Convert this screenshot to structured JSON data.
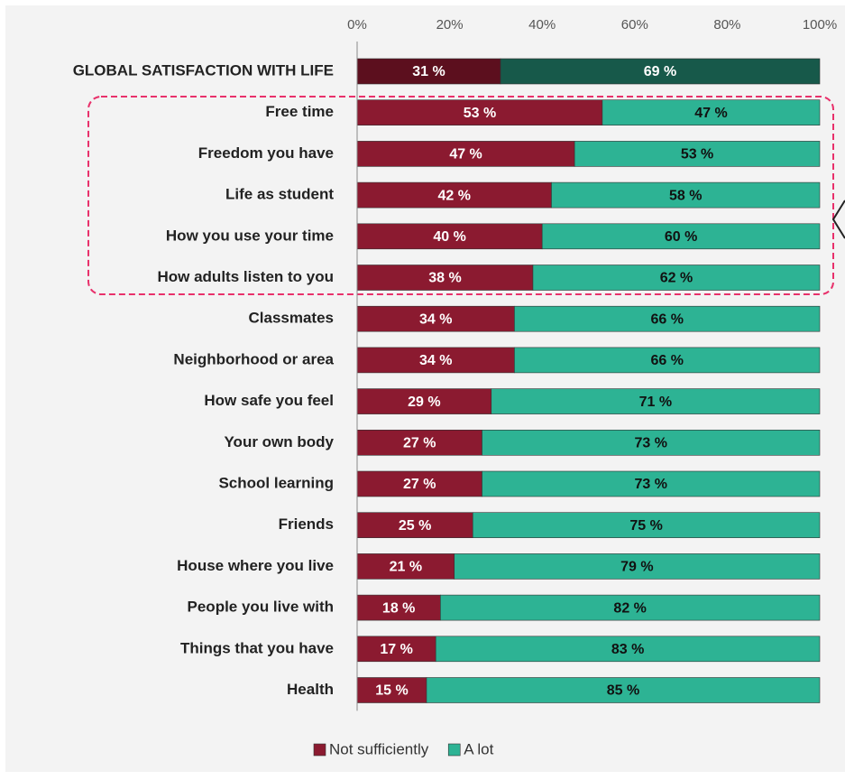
{
  "chart_data": {
    "type": "stacked_bar_horizontal",
    "categories": [
      "GLOBAL SATISFACTION WITH LIFE",
      "Free time",
      "Freedom you have",
      "Life as student",
      "How you use your time",
      "How adults listen to you",
      "Classmates",
      "Neighborhood or area",
      "How safe you feel",
      "Your own body",
      "School learning",
      "Friends",
      "House where you live",
      "People you live with",
      "Things that you have",
      "Health"
    ],
    "series": [
      {
        "name": "Not sufficiently",
        "color": "#8b1a30",
        "colors": [
          "#5c0f1e",
          "#8b1a30",
          "#8b1a30",
          "#8b1a30",
          "#8b1a30",
          "#8b1a30",
          "#8b1a30",
          "#8b1a30",
          "#8b1a30",
          "#8b1a30",
          "#8b1a30",
          "#8b1a30",
          "#8b1a30",
          "#8b1a30",
          "#8b1a30",
          "#8b1a30"
        ],
        "values": [
          31,
          53,
          47,
          42,
          40,
          38,
          34,
          34,
          29,
          27,
          27,
          25,
          21,
          18,
          17,
          15
        ],
        "value_labels": [
          "31 %",
          "53 %",
          "47 %",
          "42 %",
          "40 %",
          "38 %",
          "34 %",
          "34 %",
          "29 %",
          "27 %",
          "27 %",
          "25 %",
          "21 %",
          "18 %",
          "17 %",
          "15 %"
        ]
      },
      {
        "name": "A lot",
        "color": "#2db394",
        "colors": [
          "#17594a",
          "#2db394",
          "#2db394",
          "#2db394",
          "#2db394",
          "#2db394",
          "#2db394",
          "#2db394",
          "#2db394",
          "#2db394",
          "#2db394",
          "#2db394",
          "#2db394",
          "#2db394",
          "#2db394",
          "#2db394"
        ],
        "values": [
          69,
          47,
          53,
          58,
          60,
          62,
          66,
          66,
          71,
          73,
          73,
          75,
          79,
          82,
          83,
          85
        ],
        "value_labels": [
          "69 %",
          "47 %",
          "53 %",
          "58 %",
          "60 %",
          "62 %",
          "66 %",
          "66 %",
          "71 %",
          "73 %",
          "73 %",
          "75 %",
          "79 %",
          "82 %",
          "83 %",
          "85 %"
        ]
      }
    ],
    "xlim": [
      0,
      100
    ],
    "xticks": [
      {
        "value": 0,
        "label": "0%"
      },
      {
        "value": 20,
        "label": "20%"
      },
      {
        "value": 40,
        "label": "40%"
      },
      {
        "value": 60,
        "label": "60%"
      },
      {
        "value": 80,
        "label": "80%"
      },
      {
        "value": 100,
        "label": "100%"
      }
    ],
    "legend": "bottom"
  }
}
